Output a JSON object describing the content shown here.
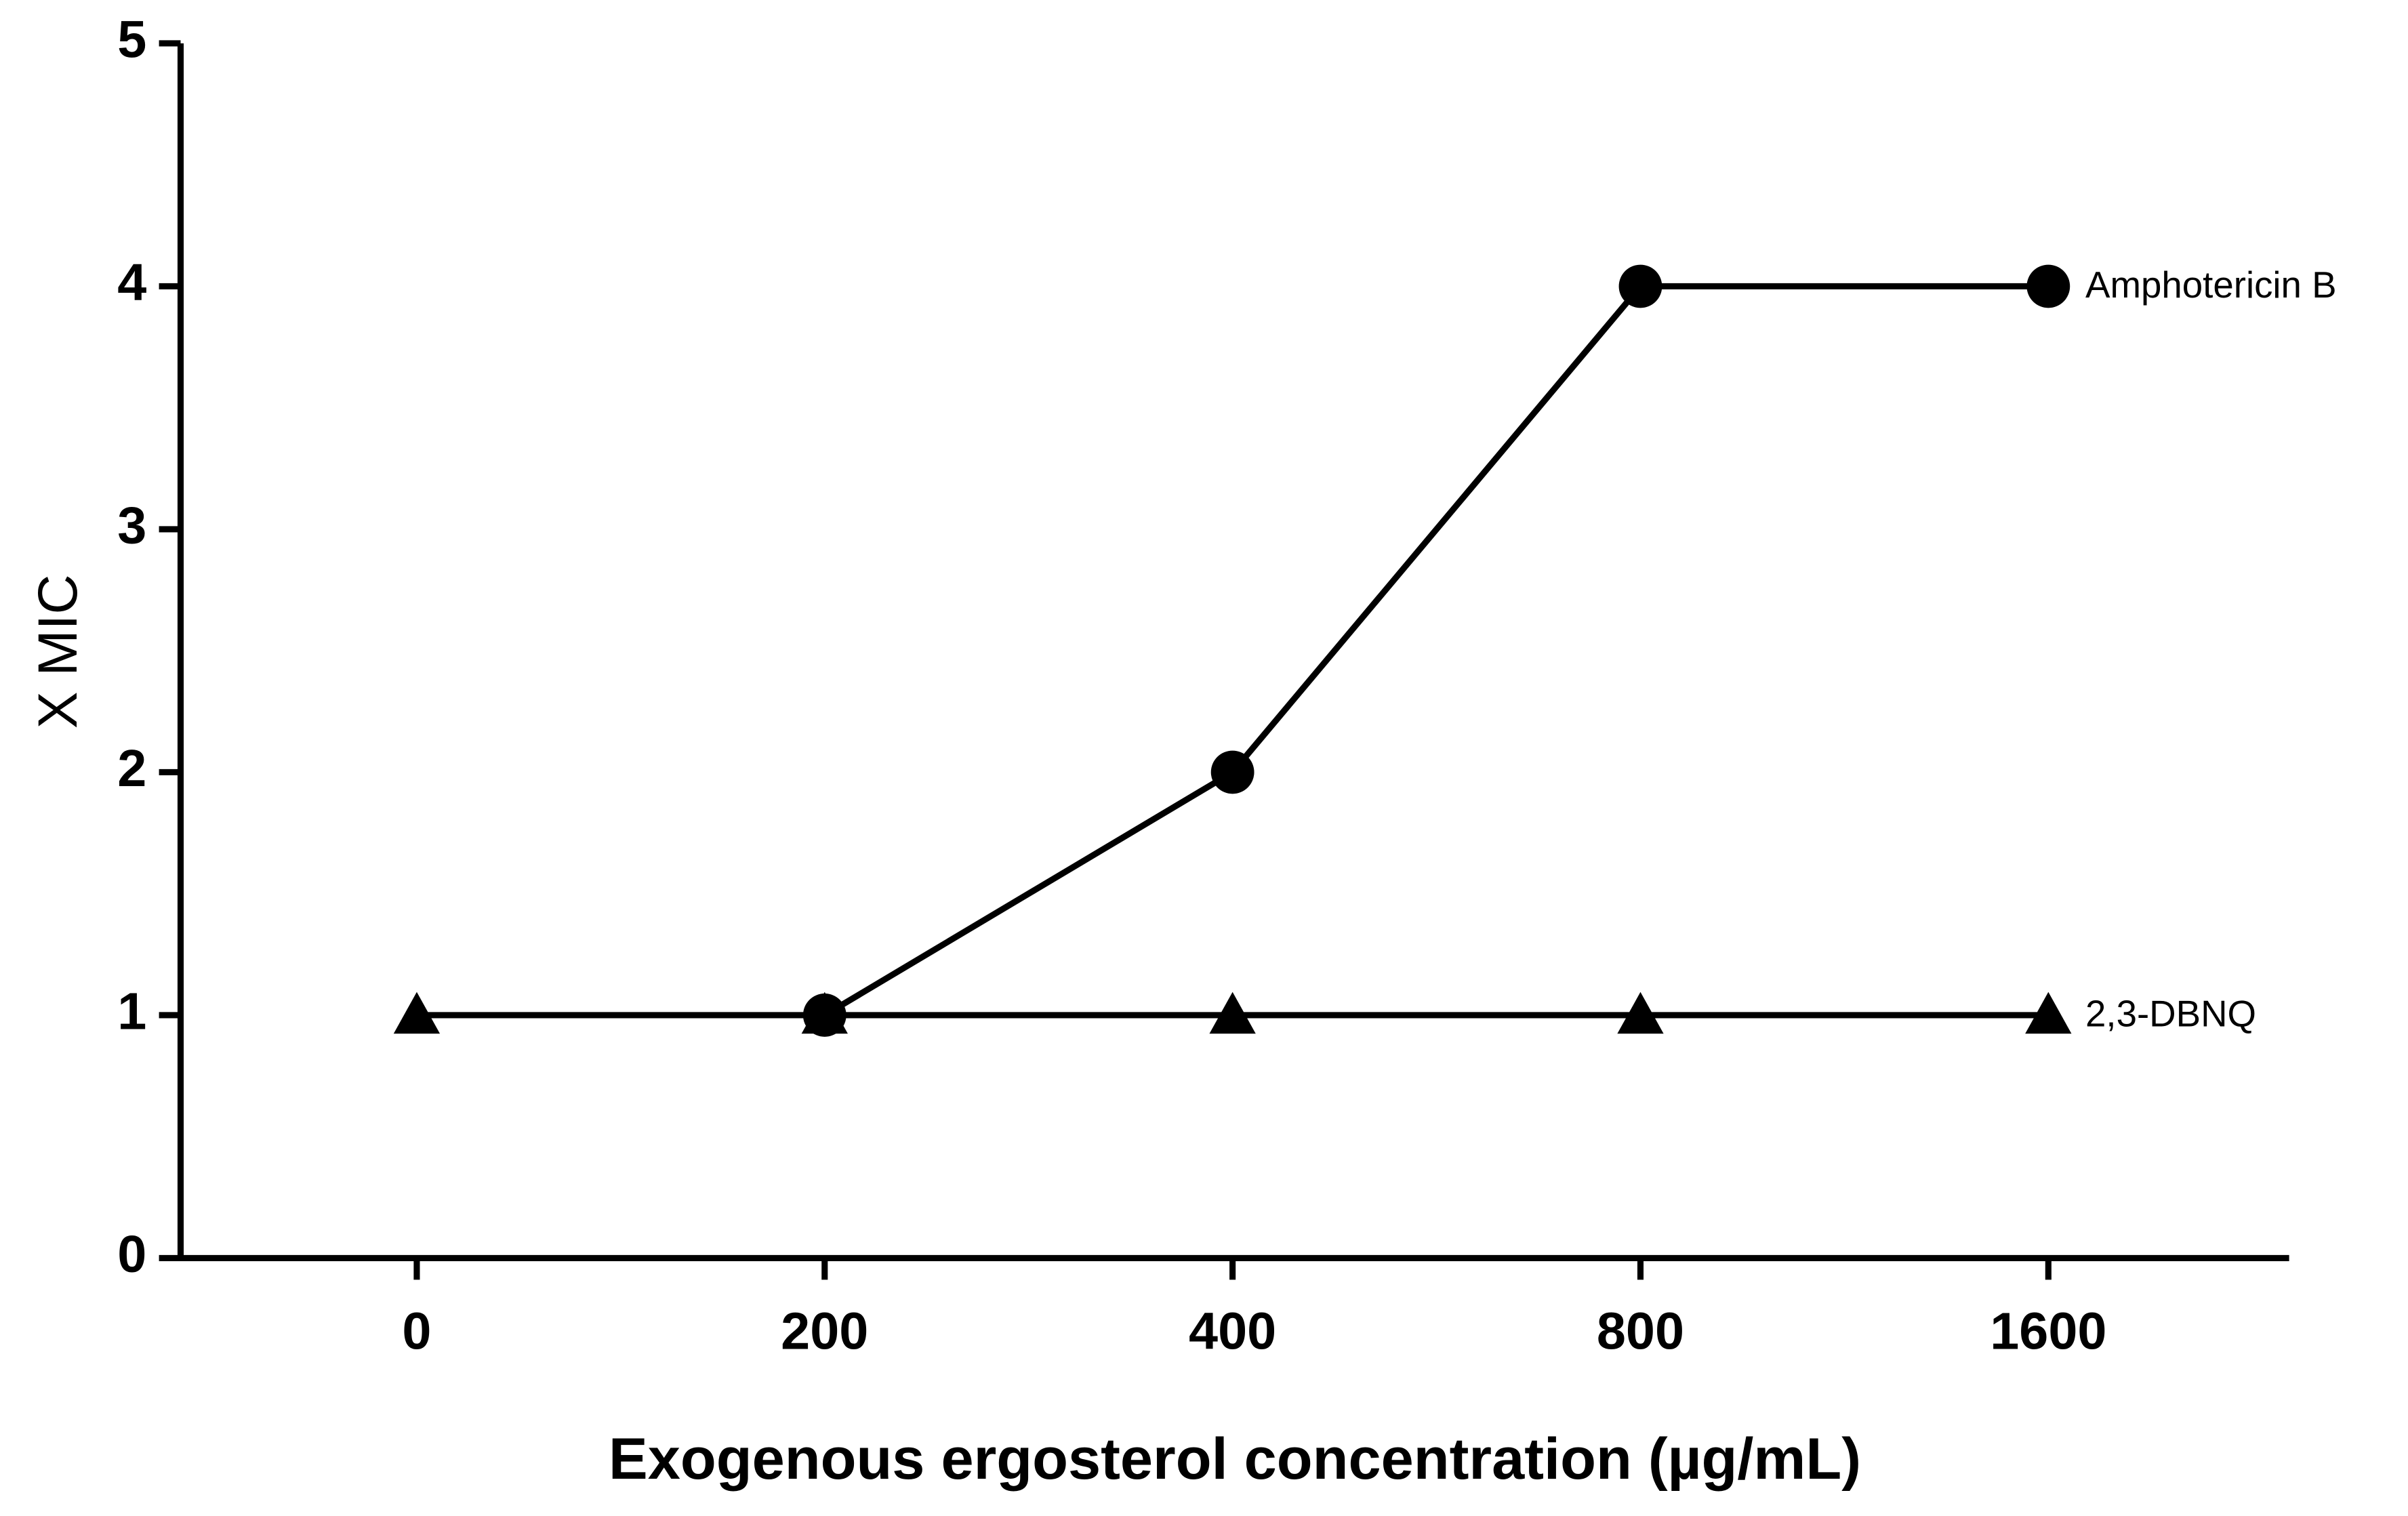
{
  "chart_data": {
    "type": "line",
    "x_label": "Exogenous ergosterol concentration (µg/mL)",
    "y_label": "X MIC",
    "categories": [
      "0",
      "200",
      "400",
      "800",
      "1600"
    ],
    "series": [
      {
        "name": "Amphotericin B",
        "color": "#000000",
        "marker": "circle",
        "values": [
          null,
          1,
          2,
          4,
          4
        ]
      },
      {
        "name": "2,3-DBNQ",
        "color": "#000000",
        "marker": "triangle",
        "values": [
          1,
          1,
          1,
          1,
          1
        ]
      }
    ],
    "ylim": [
      0,
      5
    ],
    "yticks": [
      0,
      1,
      2,
      3,
      4,
      5
    ]
  }
}
